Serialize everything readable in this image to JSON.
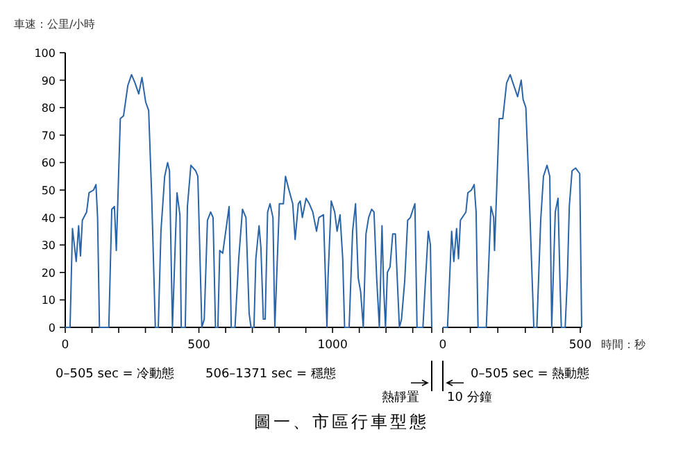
{
  "chart_data": [
    {
      "type": "line",
      "ylabel": "車速：公里/小時",
      "xlim": [
        0,
        1371
      ],
      "ylim": [
        0,
        100
      ],
      "xticks": [
        0,
        {
          "value": 100,
          "label": null
        },
        {
          "value": 200,
          "label": null
        },
        {
          "value": 300,
          "label": null
        },
        {
          "value": 400,
          "label": null
        },
        500,
        {
          "value": 600,
          "label": null
        },
        {
          "value": 700,
          "label": null
        },
        {
          "value": 800,
          "label": null
        },
        {
          "value": 900,
          "label": null
        },
        1000,
        {
          "value": 1100,
          "label": null
        },
        {
          "value": 1200,
          "label": null
        },
        {
          "value": 1300,
          "label": null
        },
        {
          "value": 1371,
          "label": null
        }
      ],
      "yticks": [
        0,
        10,
        20,
        30,
        40,
        50,
        60,
        70,
        80,
        90,
        100
      ],
      "grid": false,
      "annotations": [
        "0–505 sec = 冷動態",
        "506–1371 sec = 穩態",
        "熱靜置",
        "圖一、市區行車型態"
      ],
      "series": [
        {
          "color": "#2a64a8",
          "x": [
            0,
            18,
            27,
            41,
            50,
            57,
            64,
            80,
            89,
            106,
            115,
            121,
            128,
            163,
            174,
            184,
            191,
            206,
            218,
            234,
            248,
            261,
            275,
            287,
            301,
            312,
            323,
            337,
            348,
            358,
            372,
            383,
            390,
            401,
            418,
            429,
            434,
            449,
            457,
            470,
            488,
            496,
            511,
            520,
            532,
            544,
            553,
            562,
            571,
            578,
            589,
            599,
            613,
            621,
            635,
            649,
            663,
            676,
            688,
            695,
            706,
            713,
            725,
            732,
            741,
            748,
            757,
            766,
            777,
            784,
            801,
            816,
            824,
            837,
            851,
            860,
            872,
            879,
            887,
            901,
            913,
            926,
            940,
            949,
            966,
            979,
            983,
            995,
            1008,
            1017,
            1028,
            1038,
            1045,
            1062,
            1075,
            1086,
            1096,
            1105,
            1115,
            1125,
            1135,
            1146,
            1155,
            1165,
            1175,
            1185,
            1191,
            1198,
            1205,
            1215,
            1225,
            1235,
            1241,
            1250,
            1258,
            1270,
            1281,
            1291,
            1301,
            1308,
            1316,
            1338,
            1348,
            1358,
            1366,
            1371
          ],
          "values": [
            0,
            0,
            36,
            24,
            37,
            26,
            39,
            42,
            49,
            50,
            52,
            40,
            0,
            0,
            43,
            44,
            28,
            76,
            77,
            88,
            92,
            89,
            85,
            91,
            82,
            79,
            49,
            0,
            0,
            35,
            55,
            60,
            57,
            0,
            49,
            41,
            0,
            0,
            44,
            59,
            57,
            55,
            0,
            3,
            39,
            42,
            40,
            0,
            0,
            28,
            27,
            34,
            44,
            0,
            0,
            25,
            43,
            40,
            5,
            0,
            0,
            25,
            37,
            29,
            3,
            3,
            42,
            45,
            40,
            0,
            45,
            45,
            55,
            50,
            45,
            32,
            45,
            46,
            40,
            47,
            45,
            42,
            35,
            40,
            41,
            0,
            18,
            46,
            42,
            35,
            41,
            25,
            0,
            0,
            35,
            45,
            18,
            13,
            0,
            34,
            40,
            43,
            42,
            18,
            0,
            37,
            15,
            0,
            20,
            22,
            34,
            34,
            20,
            0,
            3,
            17,
            39,
            40,
            43,
            45,
            0,
            0,
            18,
            35,
            30,
            0
          ]
        }
      ]
    },
    {
      "type": "line",
      "xlabel": "時間：秒",
      "xlim": [
        0,
        505
      ],
      "ylim": [
        0,
        100
      ],
      "tick_labels": "x",
      "xticks": [
        0,
        {
          "value": 100,
          "label": null
        },
        {
          "value": 200,
          "label": null
        },
        {
          "value": 300,
          "label": null
        },
        {
          "value": 400,
          "label": null
        },
        500
      ],
      "grid": false,
      "annotations": [
        "10 分鐘",
        "0–505 sec = 熱動態"
      ],
      "series": [
        {
          "color": "#2a64a8",
          "x": [
            0,
            17,
            32,
            40,
            50,
            57,
            64,
            84,
            91,
            104,
            114,
            121,
            128,
            158,
            175,
            185,
            188,
            205,
            218,
            232,
            245,
            255,
            272,
            285,
            292,
            302,
            314,
            331,
            342,
            356,
            366,
            379,
            389,
            396,
            409,
            419,
            426,
            431,
            445,
            453,
            460,
            470,
            483,
            498,
            505
          ],
          "values": [
            0,
            0,
            35,
            24,
            36,
            25,
            39,
            42,
            49,
            50,
            52,
            42,
            0,
            0,
            44,
            40,
            28,
            76,
            76,
            89,
            92,
            89,
            84,
            90,
            83,
            80,
            49,
            0,
            0,
            39,
            55,
            59,
            55,
            0,
            42,
            47,
            17,
            0,
            0,
            18,
            44,
            57,
            58,
            56,
            0
          ]
        }
      ]
    }
  ]
}
